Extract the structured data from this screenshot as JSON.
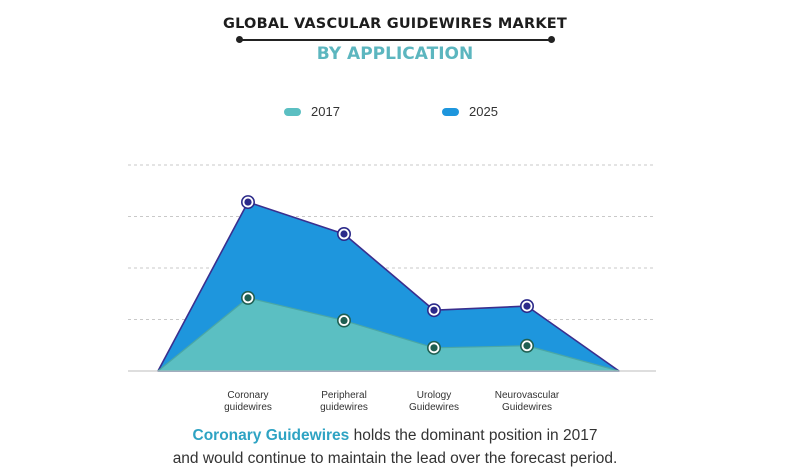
{
  "header": {
    "title": "GLOBAL VASCULAR GUIDEWIRES MARKET",
    "subtitle": "BY APPLICATION"
  },
  "colors": {
    "series_2017": "#5bbfc2",
    "series_2025": "#1e96dd",
    "line_2025": "#3a2f8e",
    "marker_2017": "#1f5f52",
    "marker_2025": "#2c2a8a",
    "highlight": "#2ea3c3"
  },
  "chart_data": {
    "type": "area",
    "categories": [
      "",
      "Coronary guidewires",
      "Peripheral guidewires",
      "Urology Guidewires",
      "Neurovascular Guidewires",
      ""
    ],
    "category_labels": [
      [
        "Coronary",
        "guidewires"
      ],
      [
        "Peripheral",
        "guidewires"
      ],
      [
        "Urology",
        "Guidewires"
      ],
      [
        "Neurovascular",
        "Guidewires"
      ]
    ],
    "series": [
      {
        "name": "2017",
        "values": [
          0,
          1.42,
          0.98,
          0.45,
          0.49,
          0
        ]
      },
      {
        "name": "2025",
        "values": [
          0,
          3.28,
          2.66,
          1.18,
          1.26,
          0
        ]
      }
    ],
    "ylim": [
      0,
      4
    ],
    "grid": true,
    "legend_position": "top-center",
    "title": "",
    "xlabel": "",
    "ylabel": ""
  },
  "caption": {
    "highlight": "Coronary Guidewires",
    "line1_rest": " holds the dominant position in 2017",
    "line2": "and would continue to maintain the lead over the forecast period."
  }
}
